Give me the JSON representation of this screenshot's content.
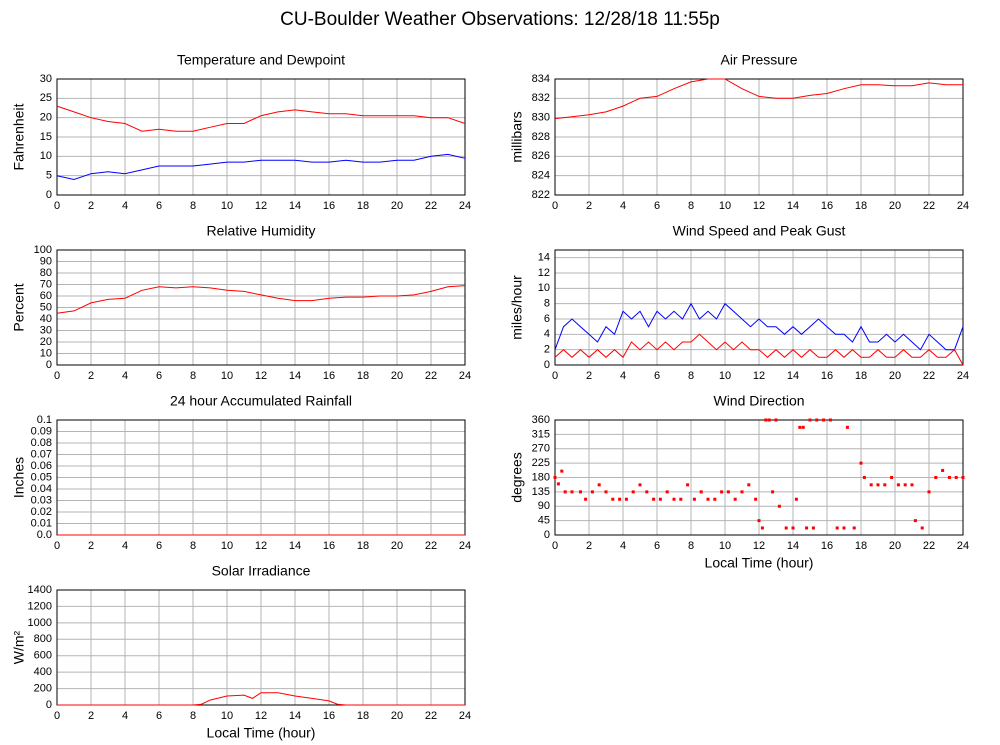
{
  "title": "CU-Boulder Weather Observations: 12/28/18 11:55p",
  "chart_data": [
    {
      "type": "line",
      "title": "Temperature and Dewpoint",
      "ylabel": "Fahrenheit",
      "x": [
        0,
        1,
        2,
        3,
        4,
        5,
        6,
        7,
        8,
        9,
        10,
        11,
        12,
        13,
        14,
        15,
        16,
        17,
        18,
        19,
        20,
        21,
        22,
        23,
        24
      ],
      "series": [
        {
          "color": "#ff0000",
          "values": [
            23,
            21.5,
            20,
            19,
            18.5,
            16.5,
            17,
            16.5,
            16.5,
            17.5,
            18.5,
            18.5,
            20.5,
            21.5,
            22,
            21.5,
            21,
            21,
            20.5,
            20.5,
            20.5,
            20.5,
            20,
            20,
            18.5
          ]
        },
        {
          "color": "#0000ff",
          "values": [
            5,
            4,
            5.5,
            6,
            5.5,
            6.5,
            7.5,
            7.5,
            7.5,
            8,
            8.5,
            8.5,
            9,
            9,
            9,
            8.5,
            8.5,
            9,
            8.5,
            8.5,
            9,
            9,
            10,
            10.5,
            9.5
          ]
        }
      ],
      "xlim": [
        0,
        24
      ],
      "xticks": [
        0,
        2,
        4,
        6,
        8,
        10,
        12,
        14,
        16,
        18,
        20,
        22,
        24
      ],
      "ylim": [
        0,
        30
      ],
      "yticks": [
        0,
        5,
        10,
        15,
        20,
        25,
        30
      ],
      "grid": true
    },
    {
      "type": "line",
      "title": "Air Pressure",
      "ylabel": "millibars",
      "x": [
        0,
        1,
        2,
        3,
        4,
        5,
        6,
        7,
        8,
        9,
        10,
        11,
        12,
        13,
        14,
        15,
        16,
        17,
        18,
        19,
        20,
        21,
        22,
        23,
        24
      ],
      "series": [
        {
          "color": "#ff0000",
          "values": [
            829.9,
            830.1,
            830.3,
            830.6,
            831.2,
            832,
            832.2,
            833,
            833.7,
            834,
            834,
            833,
            832.2,
            832,
            832,
            832.3,
            832.5,
            833,
            833.4,
            833.4,
            833.3,
            833.3,
            833.6,
            833.4,
            833.4
          ]
        }
      ],
      "xlim": [
        0,
        24
      ],
      "xticks": [
        0,
        2,
        4,
        6,
        8,
        10,
        12,
        14,
        16,
        18,
        20,
        22,
        24
      ],
      "ylim": [
        822,
        834
      ],
      "yticks": [
        822,
        824,
        826,
        828,
        830,
        832,
        834
      ],
      "grid": true
    },
    {
      "type": "line",
      "title": "Relative Humidity",
      "ylabel": "Percent",
      "x": [
        0,
        1,
        2,
        3,
        4,
        5,
        6,
        7,
        8,
        9,
        10,
        11,
        12,
        13,
        14,
        15,
        16,
        17,
        18,
        19,
        20,
        21,
        22,
        23,
        24
      ],
      "series": [
        {
          "color": "#ff0000",
          "values": [
            45,
            47,
            54,
            57,
            58,
            65,
            68,
            67,
            68,
            67,
            65,
            64,
            61,
            58,
            56,
            56,
            58,
            59,
            59,
            60,
            60,
            61,
            64,
            68,
            69
          ]
        }
      ],
      "xlim": [
        0,
        24
      ],
      "xticks": [
        0,
        2,
        4,
        6,
        8,
        10,
        12,
        14,
        16,
        18,
        20,
        22,
        24
      ],
      "ylim": [
        0,
        100
      ],
      "yticks": [
        0,
        10,
        20,
        30,
        40,
        50,
        60,
        70,
        80,
        90,
        100
      ],
      "grid": true
    },
    {
      "type": "line",
      "title": "Wind Speed and Peak Gust",
      "ylabel": "miles/hour",
      "x": [
        0,
        0.5,
        1,
        1.5,
        2,
        2.5,
        3,
        3.5,
        4,
        4.5,
        5,
        5.5,
        6,
        6.5,
        7,
        7.5,
        8,
        8.5,
        9,
        9.5,
        10,
        10.5,
        11,
        11.5,
        12,
        12.5,
        13,
        13.5,
        14,
        14.5,
        15,
        15.5,
        16,
        16.5,
        17,
        17.5,
        18,
        18.5,
        19,
        19.5,
        20,
        20.5,
        21,
        21.5,
        22,
        22.5,
        23,
        23.5,
        24
      ],
      "series": [
        {
          "color": "#0000ff",
          "values": [
            2,
            5,
            6,
            5,
            4,
            3,
            5,
            4,
            7,
            6,
            7,
            5,
            7,
            6,
            7,
            6,
            8,
            6,
            7,
            6,
            8,
            7,
            6,
            5,
            6,
            5,
            5,
            4,
            5,
            4,
            5,
            6,
            5,
            4,
            4,
            3,
            5,
            3,
            3,
            4,
            3,
            4,
            3,
            2,
            4,
            3,
            2,
            2,
            5
          ]
        },
        {
          "color": "#ff0000",
          "values": [
            1,
            2,
            1,
            2,
            1,
            2,
            1,
            2,
            1,
            3,
            2,
            3,
            2,
            3,
            2,
            3,
            3,
            4,
            3,
            2,
            3,
            2,
            3,
            2,
            2,
            1,
            2,
            1,
            2,
            1,
            2,
            1,
            1,
            2,
            1,
            2,
            1,
            1,
            2,
            1,
            1,
            2,
            1,
            1,
            2,
            1,
            1,
            2,
            0
          ]
        }
      ],
      "xlim": [
        0,
        24
      ],
      "xticks": [
        0,
        2,
        4,
        6,
        8,
        10,
        12,
        14,
        16,
        18,
        20,
        22,
        24
      ],
      "ylim": [
        0,
        15
      ],
      "yticks": [
        0,
        2,
        4,
        6,
        8,
        10,
        12,
        14
      ],
      "grid": true
    },
    {
      "type": "line",
      "title": "24 hour Accumulated Rainfall",
      "ylabel": "Inches",
      "x": [
        0,
        24
      ],
      "series": [
        {
          "color": "#ff0000",
          "values": [
            0,
            0
          ]
        }
      ],
      "xlim": [
        0,
        24
      ],
      "xticks": [
        0,
        2,
        4,
        6,
        8,
        10,
        12,
        14,
        16,
        18,
        20,
        22,
        24
      ],
      "ylim": [
        0,
        0.1
      ],
      "yticks": [
        {
          "value": 0,
          "label": "0.0"
        },
        0.01,
        0.02,
        0.03,
        0.04,
        0.05,
        0.06,
        0.07,
        0.08,
        0.09,
        0.1
      ],
      "grid": true
    },
    {
      "type": "scatter",
      "title": "Wind Direction",
      "ylabel": "degrees",
      "xlabel": "Local Time (hour)",
      "x": [
        0,
        0.2,
        0.4,
        0.6,
        1,
        1.5,
        1.8,
        2.2,
        2.6,
        3,
        3.4,
        3.8,
        4.2,
        4.6,
        5,
        5.4,
        5.8,
        6.2,
        6.6,
        7,
        7.4,
        7.8,
        8.2,
        8.6,
        9,
        9.4,
        9.8,
        10.2,
        10.6,
        11,
        11.4,
        11.8,
        12,
        12.2,
        12.4,
        12.6,
        12.8,
        13,
        13.2,
        13.6,
        14,
        14.2,
        14.4,
        14.6,
        14.8,
        15,
        15.2,
        15.4,
        15.8,
        16.2,
        16.6,
        17,
        17.2,
        17.6,
        18,
        18.2,
        18.6,
        19,
        19.4,
        19.8,
        20.2,
        20.6,
        21,
        21.2,
        21.6,
        22,
        22.4,
        22.8,
        23.2,
        23.6,
        24
      ],
      "series": [
        {
          "color": "#ff0000",
          "values": [
            180,
            160,
            200,
            135,
            135,
            135,
            112,
            135,
            157,
            135,
            112,
            112,
            112,
            135,
            157,
            135,
            112,
            112,
            135,
            112,
            112,
            157,
            112,
            135,
            112,
            112,
            135,
            135,
            112,
            135,
            157,
            112,
            45,
            22,
            360,
            360,
            135,
            360,
            90,
            22,
            22,
            112,
            337,
            337,
            22,
            360,
            22,
            360,
            360,
            360,
            22,
            22,
            337,
            22,
            225,
            180,
            157,
            157,
            157,
            180,
            157,
            157,
            157,
            45,
            22,
            135,
            180,
            202,
            180,
            180,
            180
          ]
        }
      ],
      "xlim": [
        0,
        24
      ],
      "xticks": [
        0,
        2,
        4,
        6,
        8,
        10,
        12,
        14,
        16,
        18,
        20,
        22,
        24
      ],
      "ylim": [
        0,
        360
      ],
      "yticks": [
        0,
        45,
        90,
        135,
        180,
        225,
        270,
        315,
        360
      ],
      "grid": true
    },
    {
      "type": "line",
      "title": "Solar Irradiance",
      "ylabel": "W/m²",
      "xlabel": "Local Time (hour)",
      "x": [
        0,
        8,
        8.5,
        9,
        10,
        11,
        11.5,
        12,
        13,
        14,
        15,
        16,
        16.5,
        17,
        24
      ],
      "series": [
        {
          "color": "#ff0000",
          "values": [
            0,
            0,
            10,
            60,
            110,
            120,
            80,
            150,
            150,
            110,
            80,
            50,
            10,
            0,
            0
          ]
        }
      ],
      "xlim": [
        0,
        24
      ],
      "xticks": [
        0,
        2,
        4,
        6,
        8,
        10,
        12,
        14,
        16,
        18,
        20,
        22,
        24
      ],
      "ylim": [
        0,
        1400
      ],
      "yticks": [
        0,
        200,
        400,
        600,
        800,
        1000,
        1200,
        1400
      ],
      "grid": true
    }
  ]
}
